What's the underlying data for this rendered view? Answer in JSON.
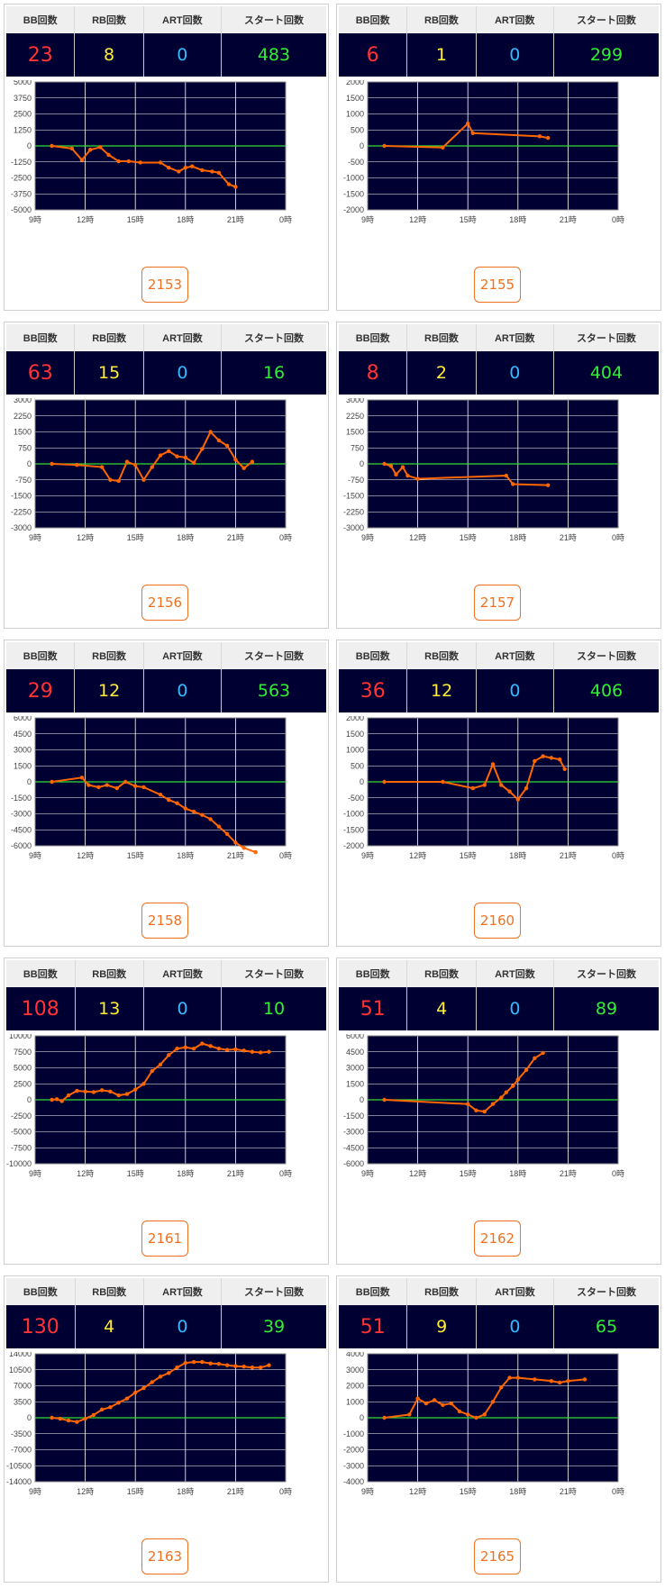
{
  "headers": {
    "bb": "BB回数",
    "rb": "RB回数",
    "art": "ART回数",
    "start": "スタート回数"
  },
  "x_ticks": [
    "9時",
    "12時",
    "15時",
    "18時",
    "21時",
    "0時"
  ],
  "colors": {
    "plot_bg": "#000033",
    "line": "#ff6600",
    "zero_line": "#33dd33",
    "grid": "#ffffff",
    "button": "#f07020"
  },
  "machines": [
    {
      "id": "2153",
      "bb": "23",
      "rb": "8",
      "art": "0",
      "start": "483",
      "chart_data": {
        "type": "line",
        "ylim": [
          -5000,
          5000
        ],
        "y_ticks": [
          "5000",
          "3750",
          "2500",
          "1250",
          "0",
          "-1250",
          "-2500",
          "-3750",
          "-5000"
        ],
        "x": [
          10,
          11.2,
          11.8,
          12.3,
          12.9,
          13.4,
          14,
          14.6,
          15.3,
          16.5,
          17,
          17.6,
          18,
          18.4,
          19,
          19.6,
          20,
          20.6,
          21
        ],
        "y": [
          0,
          -200,
          -1100,
          -300,
          -100,
          -700,
          -1200,
          -1200,
          -1300,
          -1300,
          -1700,
          -2000,
          -1700,
          -1600,
          -1900,
          -2000,
          -2100,
          -3000,
          -3200
        ]
      }
    },
    {
      "id": "2155",
      "bb": "6",
      "rb": "1",
      "art": "0",
      "start": "299",
      "chart_data": {
        "type": "line",
        "ylim": [
          -2000,
          2000
        ],
        "y_ticks": [
          "2000",
          "1500",
          "1000",
          "500",
          "0",
          "-500",
          "-1000",
          "-1500",
          "-2000"
        ],
        "x": [
          10,
          13.5,
          15,
          15.3,
          19.3,
          19.8
        ],
        "y": [
          0,
          -50,
          700,
          400,
          300,
          250
        ]
      }
    },
    {
      "id": "2156",
      "bb": "63",
      "rb": "15",
      "art": "0",
      "start": "16",
      "chart_data": {
        "type": "line",
        "ylim": [
          -3000,
          3000
        ],
        "y_ticks": [
          "3000",
          "2250",
          "1500",
          "750",
          "0",
          "-750",
          "-1500",
          "-2250",
          "-3000"
        ],
        "x": [
          10,
          11.5,
          13,
          13.5,
          14,
          14.5,
          15,
          15.5,
          16,
          16.5,
          17,
          17.5,
          18,
          18.5,
          19,
          19.5,
          20,
          20.5,
          21,
          21.5,
          22
        ],
        "y": [
          0,
          -50,
          -150,
          -750,
          -800,
          100,
          -50,
          -750,
          -150,
          400,
          600,
          350,
          300,
          50,
          700,
          1500,
          1100,
          850,
          200,
          -200,
          100
        ]
      }
    },
    {
      "id": "2157",
      "bb": "8",
      "rb": "2",
      "art": "0",
      "start": "404",
      "chart_data": {
        "type": "line",
        "ylim": [
          -3000,
          3000
        ],
        "y_ticks": [
          "3000",
          "2250",
          "1500",
          "750",
          "0",
          "-750",
          "-1500",
          "-2250",
          "-3000"
        ],
        "x": [
          10,
          10.4,
          10.7,
          11.1,
          11.4,
          12,
          17.3,
          17.7,
          19.8
        ],
        "y": [
          0,
          -100,
          -500,
          -150,
          -550,
          -700,
          -550,
          -950,
          -1000
        ]
      }
    },
    {
      "id": "2158",
      "bb": "29",
      "rb": "12",
      "art": "0",
      "start": "563",
      "chart_data": {
        "type": "line",
        "ylim": [
          -6000,
          6000
        ],
        "y_ticks": [
          "6000",
          "4500",
          "3000",
          "1500",
          "0",
          "-1500",
          "-3000",
          "-4500",
          "-6000"
        ],
        "x": [
          10,
          11.8,
          12.2,
          12.8,
          13.3,
          13.9,
          14.4,
          15,
          15.5,
          16.5,
          17,
          17.5,
          18,
          18.5,
          19,
          19.5,
          20,
          20.5,
          21,
          21.5,
          22.2
        ],
        "y": [
          0,
          400,
          -300,
          -500,
          -300,
          -600,
          0,
          -400,
          -500,
          -1200,
          -1700,
          -2000,
          -2500,
          -2800,
          -3100,
          -3500,
          -4200,
          -4900,
          -5700,
          -6200,
          -6600
        ]
      }
    },
    {
      "id": "2160",
      "bb": "36",
      "rb": "12",
      "art": "0",
      "start": "406",
      "chart_data": {
        "type": "line",
        "ylim": [
          -2000,
          2000
        ],
        "y_ticks": [
          "2000",
          "1500",
          "1000",
          "500",
          "0",
          "-500",
          "-1000",
          "-1500",
          "-2000"
        ],
        "x": [
          10,
          13.5,
          15.3,
          16,
          16.5,
          17,
          17.5,
          18,
          18.5,
          19,
          19.5,
          20,
          20.5,
          20.8
        ],
        "y": [
          0,
          0,
          -200,
          -100,
          550,
          -100,
          -300,
          -550,
          -200,
          650,
          800,
          750,
          700,
          400
        ]
      }
    },
    {
      "id": "2161",
      "bb": "108",
      "rb": "13",
      "art": "0",
      "start": "10",
      "chart_data": {
        "type": "line",
        "ylim": [
          -10000,
          10000
        ],
        "y_ticks": [
          "10000",
          "7500",
          "5000",
          "2500",
          "0",
          "-2500",
          "-5000",
          "-7500",
          "-10000"
        ],
        "x": [
          10,
          10.3,
          10.6,
          11,
          11.5,
          12,
          12.5,
          13,
          13.5,
          14,
          14.5,
          15,
          15.5,
          16,
          16.5,
          17,
          17.5,
          18,
          18.5,
          19,
          19.5,
          20,
          20.5,
          21,
          21.5,
          22,
          22.5,
          23
        ],
        "y": [
          0,
          100,
          -200,
          700,
          1400,
          1300,
          1200,
          1500,
          1300,
          700,
          900,
          1600,
          2500,
          4500,
          5500,
          7000,
          8000,
          8200,
          8000,
          8800,
          8400,
          8000,
          7800,
          7900,
          7700,
          7500,
          7400,
          7500
        ]
      }
    },
    {
      "id": "2162",
      "bb": "51",
      "rb": "4",
      "art": "0",
      "start": "89",
      "chart_data": {
        "type": "line",
        "ylim": [
          -6000,
          6000
        ],
        "y_ticks": [
          "6000",
          "4500",
          "3000",
          "1500",
          "0",
          "-1500",
          "-3000",
          "-4500",
          "-6000"
        ],
        "x": [
          10,
          15,
          15.5,
          16,
          16.5,
          17,
          17.3,
          17.7,
          18,
          18.5,
          19,
          19.5
        ],
        "y": [
          0,
          -400,
          -1000,
          -1100,
          -400,
          200,
          700,
          1300,
          1900,
          2800,
          3900,
          4400
        ]
      }
    },
    {
      "id": "2163",
      "bb": "130",
      "rb": "4",
      "art": "0",
      "start": "39",
      "chart_data": {
        "type": "line",
        "ylim": [
          -14000,
          14000
        ],
        "y_ticks": [
          "14000",
          "10500",
          "7000",
          "3500",
          "0",
          "-3500",
          "-7000",
          "-10500",
          "-14000"
        ],
        "x": [
          10,
          10.5,
          11,
          11.5,
          12,
          12.5,
          13,
          13.5,
          14,
          14.5,
          15,
          15.5,
          16,
          16.5,
          17,
          17.5,
          18,
          18.5,
          19,
          19.5,
          20,
          20.5,
          21,
          21.5,
          22,
          22.5,
          23
        ],
        "y": [
          0,
          -200,
          -600,
          -900,
          -200,
          600,
          1800,
          2300,
          3300,
          4200,
          5500,
          6500,
          7800,
          9000,
          9800,
          11000,
          12000,
          12200,
          12200,
          11900,
          11800,
          11500,
          11300,
          11200,
          11000,
          11000,
          11500
        ]
      }
    },
    {
      "id": "2165",
      "bb": "51",
      "rb": "9",
      "art": "0",
      "start": "65",
      "chart_data": {
        "type": "line",
        "ylim": [
          -4000,
          4000
        ],
        "y_ticks": [
          "4000",
          "3000",
          "2000",
          "1000",
          "0",
          "-1000",
          "-2000",
          "-3000",
          "-4000"
        ],
        "x": [
          10,
          11.5,
          12,
          12.5,
          13,
          13.5,
          14,
          14.5,
          15,
          15.5,
          16,
          16.5,
          17,
          17.5,
          18,
          19,
          20,
          20.5,
          21,
          22
        ],
        "y": [
          0,
          200,
          1200,
          900,
          1100,
          800,
          900,
          400,
          200,
          0,
          200,
          1000,
          1900,
          2500,
          2500,
          2400,
          2300,
          2200,
          2300,
          2400
        ]
      }
    }
  ]
}
